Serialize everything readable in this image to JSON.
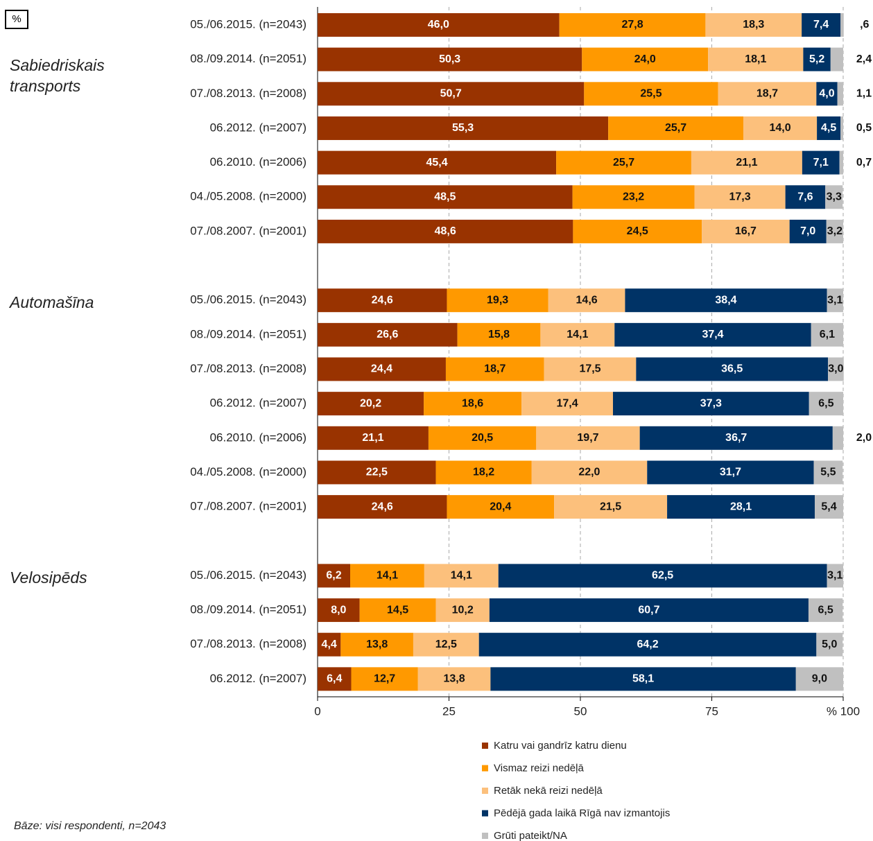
{
  "chart_data": {
    "type": "stacked_bar_horizontal",
    "title": "%",
    "footnote": "Bāze: visi respondenti, n=2043",
    "groups": [
      {
        "name": "Sabiedriskais transports",
        "categories": [
          "05./06.2015. (n=2043)",
          "08./09.2014. (n=2051)",
          "07./08.2013. (n=2008)",
          "06.2012. (n=2007)",
          "06.2010. (n=2006)",
          "04./05.2008. (n=2000)",
          "07./08.2007. (n=2001)"
        ]
      },
      {
        "name": "Automašīna",
        "categories": [
          "05./06.2015. (n=2043)",
          "08./09.2014. (n=2051)",
          "07./08.2013. (n=2008)",
          "06.2012. (n=2007)",
          "06.2010. (n=2006)",
          "04./05.2008. (n=2000)",
          "07./08.2007. (n=2001)"
        ]
      },
      {
        "name": "Velosipēds",
        "categories": [
          "05./06.2015. (n=2043)",
          "08./09.2014. (n=2051)",
          "07./08.2013. (n=2008)",
          "06.2012. (n=2007)"
        ]
      }
    ],
    "series": [
      {
        "name": "Katru vai gandrīz katru dienu",
        "color": "#993300",
        "values": [
          46.0,
          50.3,
          50.7,
          55.3,
          45.4,
          48.5,
          48.6,
          24.6,
          26.6,
          24.4,
          20.2,
          21.1,
          22.5,
          24.6,
          6.2,
          8.0,
          4.4,
          6.4
        ],
        "value_labels": [
          "46,0",
          "50,3",
          "50,7",
          "55,3",
          "45,4",
          "48,5",
          "48,6",
          "24,6",
          "26,6",
          "24,4",
          "20,2",
          "21,1",
          "22,5",
          "24,6",
          "6,2",
          "8,0",
          "4,4",
          "6,4"
        ]
      },
      {
        "name": "Vismaz reizi nedēļā",
        "color": "#ff9900",
        "values": [
          27.8,
          24.0,
          25.5,
          25.7,
          25.7,
          23.2,
          24.5,
          19.3,
          15.8,
          18.7,
          18.6,
          20.5,
          18.2,
          20.4,
          14.1,
          14.5,
          13.8,
          12.7
        ],
        "value_labels": [
          "27,8",
          "24,0",
          "25,5",
          "25,7",
          "25,7",
          "23,2",
          "24,5",
          "19,3",
          "15,8",
          "18,7",
          "18,6",
          "20,5",
          "18,2",
          "20,4",
          "14,1",
          "14,5",
          "13,8",
          "12,7"
        ]
      },
      {
        "name": "Retāk nekā reizi nedēļā",
        "color": "#fcc07c",
        "values": [
          18.3,
          18.1,
          18.7,
          14.0,
          21.1,
          17.3,
          16.7,
          14.6,
          14.1,
          17.5,
          17.4,
          19.7,
          22.0,
          21.5,
          14.1,
          10.2,
          12.5,
          13.8
        ],
        "value_labels": [
          "18,3",
          "18,1",
          "18,7",
          "14,0",
          "21,1",
          "17,3",
          "16,7",
          "14,6",
          "14,1",
          "17,5",
          "17,4",
          "19,7",
          "22,0",
          "21,5",
          "14,1",
          "10,2",
          "12,5",
          "13,8"
        ]
      },
      {
        "name": "Pēdējā gada laikā Rīgā nav izmantojis",
        "color": "#003366",
        "values": [
          7.4,
          5.2,
          4.0,
          4.5,
          7.1,
          7.6,
          7.0,
          38.4,
          37.4,
          36.5,
          37.3,
          36.7,
          31.7,
          28.1,
          62.5,
          60.7,
          64.2,
          58.1
        ],
        "value_labels": [
          "7,4",
          "5,2",
          "4,0",
          "4,5",
          "7,1",
          "7,6",
          "7,0",
          "38,4",
          "37,4",
          "36,5",
          "37,3",
          "36,7",
          "31,7",
          "28,1",
          "62,5",
          "60,7",
          "64,2",
          "58,1"
        ]
      },
      {
        "name": "Grūti pateikt/NA",
        "color": "#c0c0c0",
        "values": [
          0.6,
          2.4,
          1.1,
          0.5,
          0.7,
          3.3,
          3.2,
          3.1,
          6.1,
          3.0,
          6.5,
          2.0,
          5.5,
          5.4,
          3.1,
          6.5,
          5.0,
          9.0
        ],
        "value_labels": [
          ",6",
          "2,4",
          "1,1",
          "0,5",
          "0,7",
          "3,3",
          "3,2",
          "3,1",
          "6,1",
          "3,0",
          "6,5",
          "2,0",
          "5,5",
          "5,4",
          "3,1",
          "6,5",
          "5,0",
          "9,0"
        ]
      }
    ],
    "xlim": [
      0,
      100
    ],
    "xticks": [
      0,
      25,
      50,
      75,
      {
        "value": 100,
        "label": "% 100"
      }
    ],
    "grid": true
  }
}
